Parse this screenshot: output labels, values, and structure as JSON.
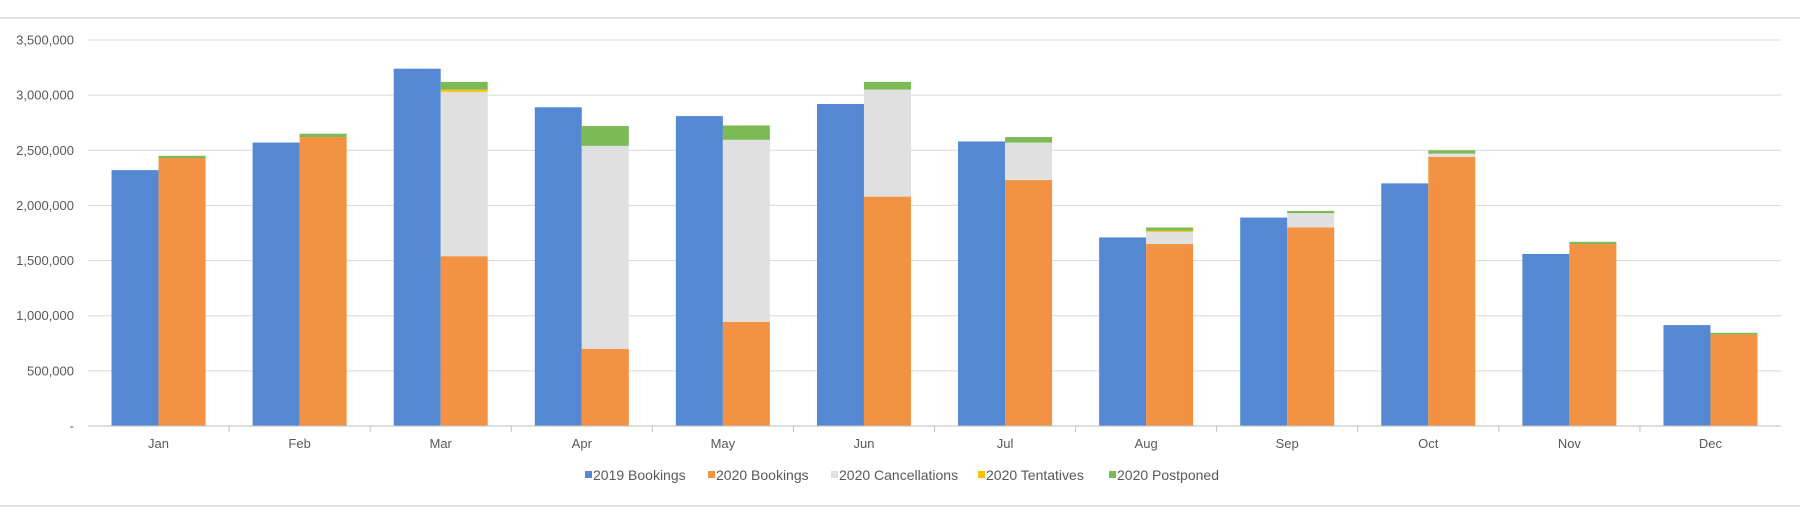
{
  "chart_data": {
    "type": "bar",
    "categories": [
      "Jan",
      "Feb",
      "Mar",
      "Apr",
      "May",
      "Jun",
      "Jul",
      "Aug",
      "Sep",
      "Oct",
      "Nov",
      "Dec"
    ],
    "series": [
      {
        "name": "2019 Bookings",
        "stack": "2019",
        "color": "#5588D2",
        "values": [
          2320000,
          2570000,
          3240000,
          2890000,
          2810000,
          2920000,
          2580000,
          1710000,
          1890000,
          2200000,
          1560000,
          915000
        ]
      },
      {
        "name": "2020 Bookings",
        "stack": "2020",
        "color": "#F39242",
        "values": [
          2430000,
          2620000,
          1540000,
          700000,
          945000,
          2080000,
          2230000,
          1650000,
          1800000,
          2440000,
          1650000,
          830000
        ]
      },
      {
        "name": "2020 Cancellations",
        "stack": "2020",
        "color": "#E0E0E0",
        "values": [
          0,
          0,
          1490000,
          1840000,
          1650000,
          970000,
          340000,
          110000,
          130000,
          30000,
          0,
          0
        ]
      },
      {
        "name": "2020 Tentatives",
        "stack": "2020",
        "color": "#FFC000",
        "values": [
          0,
          0,
          20000,
          0,
          0,
          0,
          0,
          10000,
          0,
          0,
          0,
          0
        ]
      },
      {
        "name": "2020 Postponed",
        "stack": "2020",
        "color": "#7DB955",
        "values": [
          20000,
          30000,
          70000,
          180000,
          130000,
          70000,
          50000,
          30000,
          20000,
          30000,
          20000,
          15000
        ]
      }
    ],
    "y_tick_values": [
      0,
      500000,
      1000000,
      1500000,
      2000000,
      2500000,
      3000000,
      3500000
    ],
    "y_tick_labels": [
      "-",
      "500,000",
      "1,000,000",
      "1,500,000",
      "2,000,000",
      "2,500,000",
      "3,000,000",
      "3,500,000"
    ],
    "ylim": [
      0,
      3500000
    ],
    "grid": true,
    "legend_position": "bottom",
    "title": "",
    "xlabel": "",
    "ylabel": ""
  }
}
